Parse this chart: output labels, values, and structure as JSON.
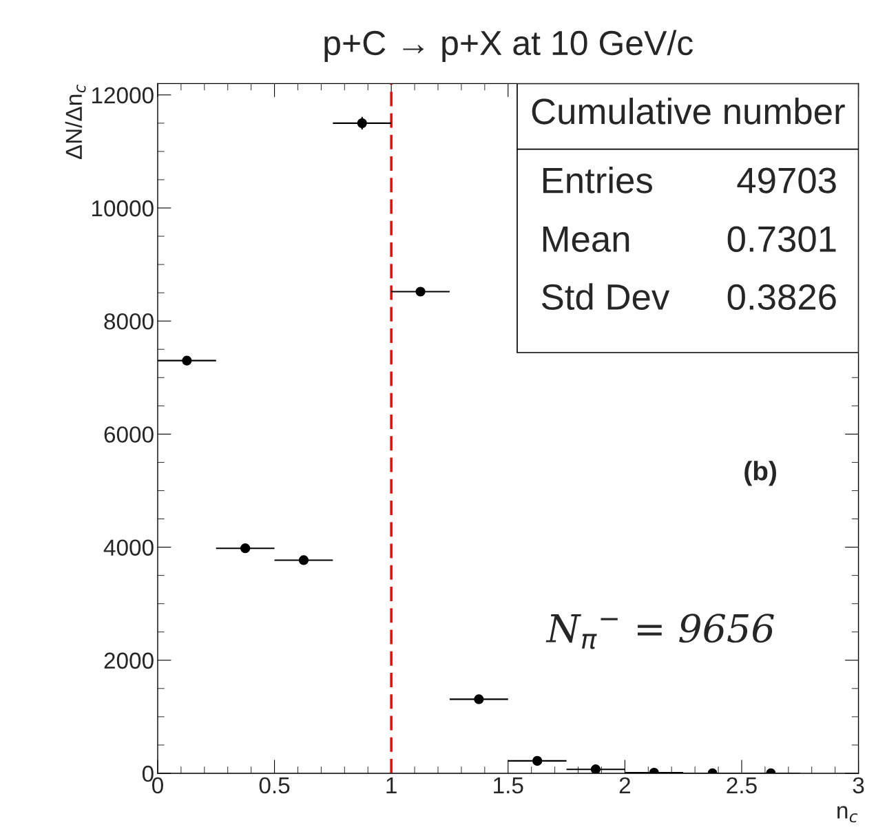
{
  "chart_data": {
    "type": "scatter",
    "title": "p+C → p+X at 10 GeV/c",
    "xlabel": "n$_{c}$",
    "ylabel": "ΔN/Δn$_{c}$",
    "x": [
      0.125,
      0.375,
      0.625,
      0.875,
      1.125,
      1.375,
      1.625,
      1.875,
      2.125,
      2.375,
      2.625
    ],
    "series": [
      {
        "color": "#000000",
        "values": [
          7300,
          3980,
          3770,
          11500,
          8520,
          1310,
          220,
          70,
          10,
          0,
          0
        ],
        "xerrors": [
          0.125,
          0.125,
          0.125,
          0.125,
          0.125,
          0.125,
          0.125,
          0.125,
          0.125,
          0.125,
          0.125
        ],
        "errors": [
          null,
          null,
          null,
          110,
          null,
          null,
          null,
          null,
          null,
          null,
          null
        ]
      }
    ],
    "marker": "circle",
    "grid": false,
    "legend": false,
    "xlim": [
      0,
      3
    ],
    "ylim": [
      0,
      12200
    ],
    "xticks": [
      0,
      {
        "value": 0.1,
        "label": null
      },
      {
        "value": 0.2,
        "label": null
      },
      {
        "value": 0.3,
        "label": null
      },
      {
        "value": 0.4,
        "label": null
      },
      0.5,
      {
        "value": 0.6,
        "label": null
      },
      {
        "value": 0.7,
        "label": null
      },
      {
        "value": 0.8,
        "label": null
      },
      {
        "value": 0.9,
        "label": null
      },
      1,
      {
        "value": 1.1,
        "label": null
      },
      {
        "value": 1.2,
        "label": null
      },
      {
        "value": 1.3,
        "label": null
      },
      {
        "value": 1.4,
        "label": null
      },
      1.5,
      {
        "value": 1.6,
        "label": null
      },
      {
        "value": 1.7,
        "label": null
      },
      {
        "value": 1.8,
        "label": null
      },
      {
        "value": 1.9,
        "label": null
      },
      2,
      {
        "value": 2.1,
        "label": null
      },
      {
        "value": 2.2,
        "label": null
      },
      {
        "value": 2.3,
        "label": null
      },
      {
        "value": 2.4,
        "label": null
      },
      2.5,
      {
        "value": 2.6,
        "label": null
      },
      {
        "value": 2.7,
        "label": null
      },
      {
        "value": 2.8,
        "label": null
      },
      {
        "value": 2.9,
        "label": null
      },
      3
    ],
    "yticks": [
      0,
      {
        "value": 500,
        "label": null
      },
      {
        "value": 1000,
        "label": null
      },
      {
        "value": 1500,
        "label": null
      },
      2000,
      {
        "value": 2500,
        "label": null
      },
      {
        "value": 3000,
        "label": null
      },
      {
        "value": 3500,
        "label": null
      },
      4000,
      {
        "value": 4500,
        "label": null
      },
      {
        "value": 5000,
        "label": null
      },
      {
        "value": 5500,
        "label": null
      },
      6000,
      {
        "value": 6500,
        "label": null
      },
      {
        "value": 7000,
        "label": null
      },
      {
        "value": 7500,
        "label": null
      },
      8000,
      {
        "value": 8500,
        "label": null
      },
      {
        "value": 9000,
        "label": null
      },
      {
        "value": 9500,
        "label": null
      },
      10000,
      {
        "value": 10500,
        "label": null
      },
      {
        "value": 11000,
        "label": null
      },
      {
        "value": 11500,
        "label": null
      },
      12000
    ],
    "ref_lines": [
      {
        "axis": "x",
        "value": 1,
        "color": "#ff0000",
        "line_style": "dashed"
      }
    ],
    "annotations": [
      "Cumulative number",
      "Entries",
      "49703",
      "Mean",
      "0.7301",
      "Std Dev",
      "0.3826",
      "(b)",
      "N$_{π}$$^{−}$ = 9656"
    ]
  }
}
